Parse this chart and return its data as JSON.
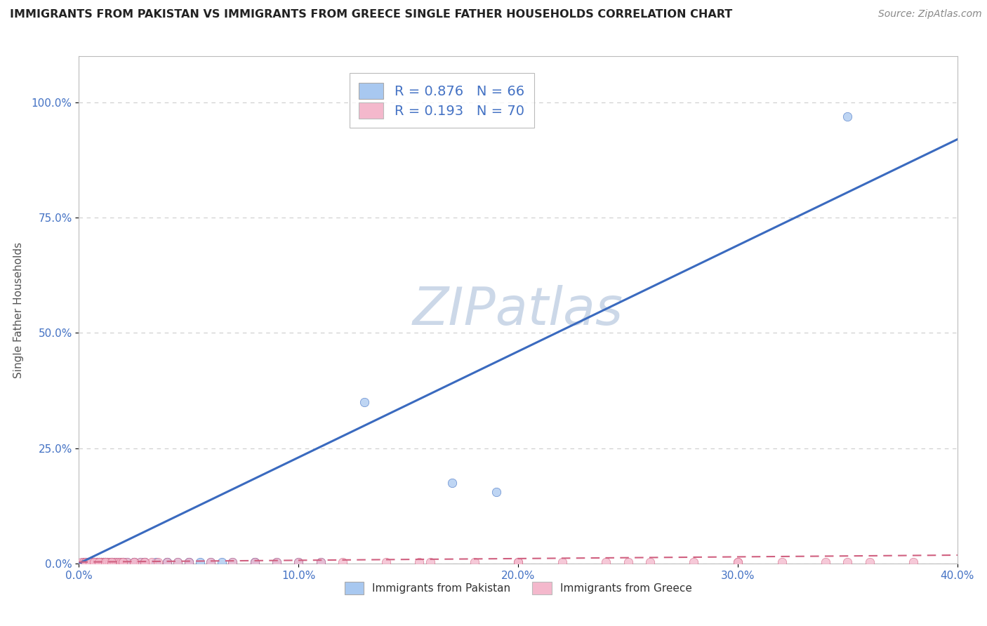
{
  "title": "IMMIGRANTS FROM PAKISTAN VS IMMIGRANTS FROM GREECE SINGLE FATHER HOUSEHOLDS CORRELATION CHART",
  "source": "Source: ZipAtlas.com",
  "ylabel": "Single Father Households",
  "watermark": "ZIPatlas",
  "legend1_r": "R = 0.876",
  "legend1_n": "N = 66",
  "legend2_r": "R = 0.193",
  "legend2_n": "N = 70",
  "legend1_series": "Immigrants from Pakistan",
  "legend2_series": "Immigrants from Greece",
  "xlim": [
    0.0,
    0.4
  ],
  "ylim": [
    0.0,
    1.1
  ],
  "xtick_values": [
    0.0,
    0.1,
    0.2,
    0.3,
    0.4
  ],
  "ytick_values": [
    0.0,
    0.25,
    0.5,
    0.75,
    1.0
  ],
  "pakistan_color": "#a8c8f0",
  "greece_color": "#f4b8cc",
  "pakistan_line_color": "#3a6abf",
  "greece_line_color": "#d06080",
  "pak_line_x0": 0.0,
  "pak_line_y0": 0.0,
  "pak_line_x1": 0.4,
  "pak_line_y1": 0.92,
  "gre_line_x0": 0.0,
  "gre_line_y0": 0.003,
  "gre_line_x1": 0.4,
  "gre_line_y1": 0.018,
  "pak_scatter_x": [
    0.002,
    0.003,
    0.004,
    0.005,
    0.005,
    0.006,
    0.006,
    0.007,
    0.007,
    0.008,
    0.008,
    0.009,
    0.009,
    0.01,
    0.01,
    0.011,
    0.011,
    0.012,
    0.012,
    0.013,
    0.013,
    0.014,
    0.015,
    0.015,
    0.016,
    0.017,
    0.018,
    0.019,
    0.02,
    0.022,
    0.025,
    0.028,
    0.03,
    0.035,
    0.04,
    0.045,
    0.05,
    0.055,
    0.06,
    0.065,
    0.07,
    0.08,
    0.09,
    0.1,
    0.11,
    0.004,
    0.006,
    0.008,
    0.01,
    0.012,
    0.015,
    0.02,
    0.025,
    0.03,
    0.04,
    0.05,
    0.08,
    0.13,
    0.17,
    0.19,
    0.003,
    0.005,
    0.007,
    0.009,
    0.011,
    0.35
  ],
  "pak_scatter_y": [
    0.003,
    0.003,
    0.002,
    0.003,
    0.002,
    0.003,
    0.002,
    0.003,
    0.002,
    0.003,
    0.002,
    0.003,
    0.002,
    0.003,
    0.002,
    0.003,
    0.002,
    0.003,
    0.002,
    0.003,
    0.002,
    0.003,
    0.002,
    0.003,
    0.002,
    0.003,
    0.002,
    0.003,
    0.002,
    0.003,
    0.002,
    0.003,
    0.002,
    0.003,
    0.002,
    0.003,
    0.002,
    0.003,
    0.002,
    0.003,
    0.002,
    0.003,
    0.002,
    0.003,
    0.002,
    0.002,
    0.003,
    0.002,
    0.003,
    0.002,
    0.003,
    0.002,
    0.003,
    0.002,
    0.003,
    0.002,
    0.003,
    0.35,
    0.175,
    0.155,
    0.002,
    0.003,
    0.002,
    0.003,
    0.002,
    0.97
  ],
  "gre_scatter_x": [
    0.001,
    0.002,
    0.003,
    0.003,
    0.004,
    0.004,
    0.005,
    0.005,
    0.006,
    0.006,
    0.007,
    0.007,
    0.008,
    0.008,
    0.009,
    0.01,
    0.01,
    0.011,
    0.012,
    0.013,
    0.014,
    0.015,
    0.016,
    0.017,
    0.018,
    0.019,
    0.02,
    0.022,
    0.025,
    0.028,
    0.03,
    0.033,
    0.036,
    0.04,
    0.045,
    0.05,
    0.06,
    0.07,
    0.08,
    0.09,
    0.1,
    0.11,
    0.12,
    0.14,
    0.16,
    0.18,
    0.2,
    0.22,
    0.24,
    0.26,
    0.28,
    0.3,
    0.32,
    0.34,
    0.36,
    0.38,
    0.003,
    0.005,
    0.007,
    0.009,
    0.012,
    0.015,
    0.02,
    0.025,
    0.03,
    0.2,
    0.25,
    0.3,
    0.35,
    0.155
  ],
  "gre_scatter_y": [
    0.003,
    0.003,
    0.003,
    0.003,
    0.003,
    0.003,
    0.003,
    0.003,
    0.003,
    0.003,
    0.003,
    0.003,
    0.003,
    0.003,
    0.003,
    0.003,
    0.003,
    0.003,
    0.003,
    0.003,
    0.003,
    0.003,
    0.003,
    0.003,
    0.003,
    0.003,
    0.003,
    0.003,
    0.003,
    0.003,
    0.003,
    0.003,
    0.003,
    0.003,
    0.003,
    0.003,
    0.003,
    0.003,
    0.003,
    0.003,
    0.003,
    0.003,
    0.003,
    0.003,
    0.003,
    0.003,
    0.003,
    0.003,
    0.003,
    0.003,
    0.003,
    0.003,
    0.003,
    0.003,
    0.003,
    0.003,
    0.003,
    0.003,
    0.003,
    0.003,
    0.003,
    0.003,
    0.003,
    0.003,
    0.003,
    0.003,
    0.003,
    0.003,
    0.003,
    0.003
  ],
  "background_color": "#ffffff",
  "grid_color": "#cccccc",
  "title_color": "#222222",
  "source_color": "#888888",
  "tick_color": "#4472c4",
  "ylabel_color": "#555555",
  "watermark_color": "#ccd8e8"
}
